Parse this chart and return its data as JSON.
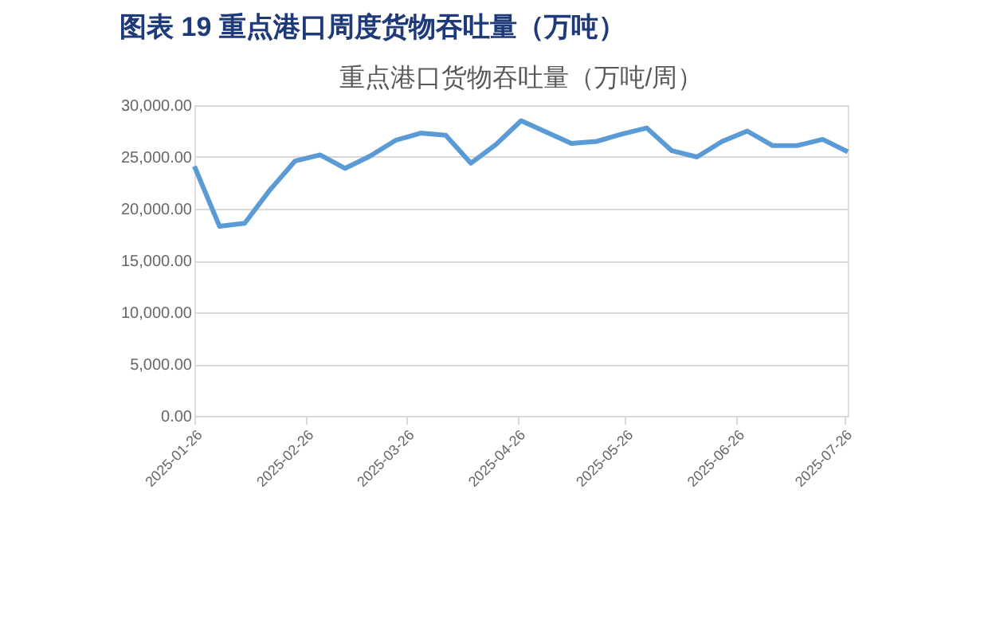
{
  "chart_data": {
    "type": "line",
    "title": "图表 19 重点港口周度货物吞吐量（万吨）",
    "subtitle": "重点港口货物吞吐量（万吨/周）",
    "x": [
      "2025-01-26",
      "2025-02-02",
      "2025-02-09",
      "2025-02-16",
      "2025-02-23",
      "2025-03-02",
      "2025-03-09",
      "2025-03-16",
      "2025-03-23",
      "2025-03-30",
      "2025-04-06",
      "2025-04-13",
      "2025-04-20",
      "2025-04-27",
      "2025-05-04",
      "2025-05-11",
      "2025-05-18",
      "2025-05-25",
      "2025-06-01",
      "2025-06-08",
      "2025-06-15",
      "2025-06-22",
      "2025-06-29",
      "2025-07-06",
      "2025-07-13",
      "2025-07-20",
      "2025-07-27"
    ],
    "series": [
      {
        "color": "#5b9bd5",
        "values": [
          24100,
          18300,
          18600,
          21800,
          24600,
          25200,
          23900,
          25100,
          26600,
          27300,
          27100,
          24400,
          26200,
          28500,
          27400,
          26300,
          26500,
          27200,
          27800,
          25600,
          25000,
          26500,
          27500,
          26100,
          26100,
          26700,
          25500
        ]
      }
    ],
    "xlim": [
      "2025-01-26",
      "2025-07-27"
    ],
    "xticks": [
      "2025-01-26",
      "2025-02-26",
      "2025-03-26",
      "2025-04-26",
      "2025-05-26",
      "2025-06-26",
      "2025-07-26"
    ],
    "ylim": [
      0,
      30000
    ],
    "yticks": [
      {
        "value": 0,
        "label": "0.00"
      },
      {
        "value": 5000,
        "label": "5,000.00"
      },
      {
        "value": 10000,
        "label": "10,000.00"
      },
      {
        "value": 15000,
        "label": "15,000.00"
      },
      {
        "value": 20000,
        "label": "20,000.00"
      },
      {
        "value": 25000,
        "label": "25,000.00"
      },
      {
        "value": 30000,
        "label": "30,000.00"
      }
    ],
    "grid": "y",
    "marker": "none",
    "line_style": "solid"
  }
}
